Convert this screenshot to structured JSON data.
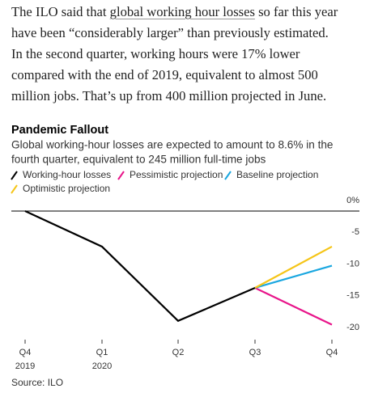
{
  "article": {
    "lines": [
      [
        "The ILO said that ",
        "global working hour losses",
        " so far this year"
      ],
      "have been “considerably larger” than previously estimated.",
      "In the second quarter, working hours were 17% lower",
      "compared with the end of 2019, equivalent to almost 500",
      "million jobs. That’s up from 400 million projected in June."
    ]
  },
  "chart_data": {
    "type": "line",
    "title": "Pandemic Fallout",
    "subtitle": [
      "Global working-hour losses are expected to amount to 8.6% in the",
      "fourth quarter, equivalent to 245 million full-time jobs"
    ],
    "categories": [
      [
        "Q4",
        "2019"
      ],
      [
        "Q1",
        "2020"
      ],
      [
        "Q2"
      ],
      [
        "Q3"
      ],
      [
        "Q4"
      ]
    ],
    "series": [
      {
        "name": "Working-hour losses",
        "color": "#000000",
        "values": [
          0,
          -5.6,
          -17.3,
          -12.1,
          null
        ]
      },
      {
        "name": "Pessimistic projection",
        "color": "#e8158a",
        "values": [
          null,
          null,
          null,
          -12.1,
          -17.9
        ]
      },
      {
        "name": "Baseline projection",
        "color": "#1aa7e0",
        "values": [
          null,
          null,
          null,
          -12.1,
          -8.6
        ]
      },
      {
        "name": "Optimistic projection",
        "color": "#f5c518",
        "values": [
          null,
          null,
          null,
          -12.1,
          -5.6
        ]
      }
    ],
    "ylim": [
      -20,
      0
    ],
    "yticks": [
      {
        "value": 0,
        "label": "0%"
      },
      -5,
      -10,
      -15,
      -20
    ],
    "source": "Source: ILO"
  }
}
